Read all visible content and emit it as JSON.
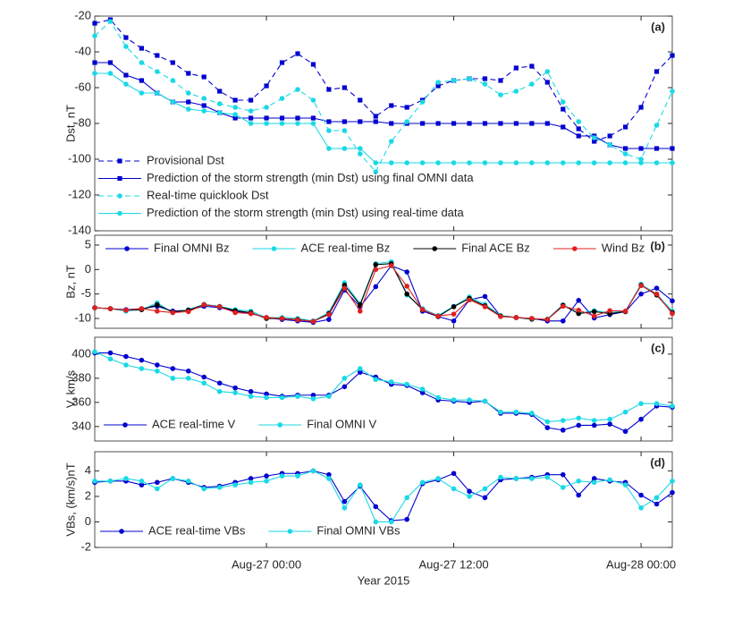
{
  "chart_data": [
    {
      "type": "line",
      "ylabel": "Dst, nT",
      "annotation": "(a)",
      "x": [
        -11,
        -10,
        -9,
        -8,
        -7,
        -6,
        -5,
        -4,
        -3,
        -2,
        -1,
        0,
        1,
        2,
        3,
        4,
        5,
        6,
        7,
        8,
        9,
        10,
        11,
        12,
        13,
        14,
        15,
        16,
        17,
        18,
        19,
        20,
        21,
        22,
        23,
        24,
        25,
        26
      ],
      "xlim": [
        -11,
        26
      ],
      "xticks": [
        0,
        12,
        24
      ],
      "ylim": [
        -140,
        -20
      ],
      "yticks": [
        -140,
        -120,
        -100,
        -80,
        -60,
        -40,
        -20
      ],
      "legend": "lower left",
      "legend_orientation": "vertical",
      "series": [
        {
          "name": "Provisional Dst",
          "color": "#0000d0",
          "line_style": "dashed",
          "marker": "square",
          "values": [
            -24,
            -22,
            -32,
            -38,
            -42,
            -46,
            -52,
            -54,
            -62,
            -67,
            -67,
            -59,
            -46,
            -41,
            -47,
            -61,
            -60,
            -67,
            -76,
            -70,
            -71,
            -67,
            -59,
            -56,
            -55,
            -55,
            -56,
            -49,
            -48,
            -57,
            -72,
            -83,
            -90,
            -87,
            -82,
            -71,
            -51,
            -42
          ]
        },
        {
          "name": "Prediction of the storm strength (min Dst) using final OMNI data",
          "color": "#0000d0",
          "line_style": "solid",
          "marker": "square",
          "values": [
            -46,
            -46,
            -53,
            -56,
            -63,
            -68,
            -68,
            -70,
            -74,
            -77,
            -77,
            -77,
            -77,
            -77,
            -77,
            -79,
            -79,
            -79,
            -79,
            -80,
            -80,
            -80,
            -80,
            -80,
            -80,
            -80,
            -80,
            -80,
            -80,
            -80,
            -82,
            -87,
            -87,
            -92,
            -94,
            -94,
            -94,
            -94
          ]
        },
        {
          "name": "Real-time quicklook Dst",
          "color": "#19d9e6",
          "line_style": "dashed",
          "marker": "circle",
          "values": [
            -31,
            -23,
            -37,
            -46,
            -51,
            -56,
            -63,
            -66,
            -69,
            -71,
            -73,
            -71,
            -66,
            -61,
            -67,
            -84,
            -84,
            -97,
            -107,
            -90,
            -79,
            -68,
            -57,
            -56,
            -55,
            -58,
            -64,
            -62,
            -58,
            -51,
            -68,
            -79,
            -88,
            -92,
            -97,
            -100,
            -81,
            -62
          ]
        },
        {
          "name": "Prediction of the storm strength (min Dst) using real-time data",
          "color": "#19d9e6",
          "line_style": "solid",
          "marker": "circle",
          "values": [
            -52,
            -52,
            -58,
            -63,
            -63,
            -68,
            -72,
            -73,
            -74,
            -75,
            -80,
            -80,
            -80,
            -80,
            -80,
            -94,
            -94,
            -94,
            -102,
            -102,
            -102,
            -102,
            -102,
            -102,
            -102,
            -102,
            -102,
            -102,
            -102,
            -102,
            -102,
            -102,
            -102,
            -102,
            -102,
            -102,
            -102,
            -102
          ]
        }
      ]
    },
    {
      "type": "line",
      "ylabel": "Bz, nT",
      "annotation": "(b)",
      "x": [
        -11,
        -10,
        -9,
        -8,
        -7,
        -6,
        -5,
        -4,
        -3,
        -2,
        -1,
        0,
        1,
        2,
        3,
        4,
        5,
        6,
        7,
        8,
        9,
        10,
        11,
        12,
        13,
        14,
        15,
        16,
        17,
        18,
        19,
        20,
        21,
        22,
        23,
        24,
        25,
        26
      ],
      "xlim": [
        -11,
        26
      ],
      "xticks": [
        0,
        12,
        24
      ],
      "ylim": [
        -12,
        7
      ],
      "yticks": [
        -10,
        -5,
        0,
        5
      ],
      "legend": "upper center",
      "legend_orientation": "horizontal",
      "series": [
        {
          "name": "Final OMNI Bz",
          "color": "#0000d0",
          "line_style": "solid",
          "marker": "circle",
          "values": [
            -7.8,
            -8,
            -8.2,
            -8,
            -7.5,
            -8.5,
            -8.3,
            -7.5,
            -7.8,
            -8.5,
            -9,
            -9.8,
            -10.2,
            -10.5,
            -10.8,
            -10.2,
            -4.2,
            -7.6,
            -3.5,
            0.8,
            -0.5,
            -8.5,
            -9.6,
            -10.5,
            -6.2,
            -5.5,
            -9.5,
            -9.8,
            -10,
            -10.5,
            -10.5,
            -6.3,
            -9.9,
            -9.2,
            -8.6,
            -5,
            -3.8,
            -6.4
          ]
        },
        {
          "name": "ACE real-time Bz",
          "color": "#19d9e6",
          "line_style": "solid",
          "marker": "circle",
          "values": [
            -7.8,
            -8,
            -8.5,
            -8.2,
            -6.8,
            -8.8,
            -8.2,
            -7.1,
            -7.5,
            -8.2,
            -8.5,
            -9.8,
            -9.8,
            -10,
            -10.5,
            -8.8,
            -2.7,
            -7,
            1.2,
            1.6,
            -5.2,
            -8,
            -9.4,
            -7.5,
            -5.6,
            -7.1,
            -9.4,
            -9.8,
            -10.2,
            -10.1,
            -7.2,
            -8.9,
            -8.4,
            -8.8,
            -8.5,
            -3,
            -5,
            -8.5
          ]
        },
        {
          "name": "Final ACE Bz",
          "color": "#000000",
          "line_style": "solid",
          "marker": "circle",
          "values": [
            -7.8,
            -8,
            -8.3,
            -8.2,
            -7.2,
            -8.7,
            -8.3,
            -7.2,
            -7.6,
            -8.4,
            -8.8,
            -10,
            -10,
            -10.2,
            -10.6,
            -9,
            -3.2,
            -7.2,
            1,
            1.2,
            -5,
            -8.2,
            -9.6,
            -7.6,
            -5.9,
            -7.4,
            -9.5,
            -9.8,
            -10.1,
            -10.2,
            -7.3,
            -9,
            -8.6,
            -9,
            -8.6,
            -3.2,
            -5.2,
            -8.8
          ]
        },
        {
          "name": "Wind Bz",
          "color": "#e02020",
          "line_style": "solid",
          "marker": "circle",
          "values": [
            -7.8,
            -8,
            -8.3,
            -8,
            -8.5,
            -8.8,
            -8.6,
            -7.2,
            -7.6,
            -8.8,
            -9,
            -9.8,
            -10,
            -10.3,
            -10.6,
            -9.2,
            -3.8,
            -8.5,
            0,
            0.8,
            -3.4,
            -8.2,
            -9.5,
            -9.1,
            -6.2,
            -7.6,
            -9.6,
            -9.8,
            -10,
            -10.2,
            -7.5,
            -8.3,
            -9.5,
            -8.4,
            -8.5,
            -3.3,
            -5,
            -9
          ]
        }
      ]
    },
    {
      "type": "line",
      "ylabel": "V, km/s",
      "annotation": "(c)",
      "x": [
        -11,
        -10,
        -9,
        -8,
        -7,
        -6,
        -5,
        -4,
        -3,
        -2,
        -1,
        0,
        1,
        2,
        3,
        4,
        5,
        6,
        7,
        8,
        9,
        10,
        11,
        12,
        13,
        14,
        15,
        16,
        17,
        18,
        19,
        20,
        21,
        22,
        23,
        24,
        25,
        26
      ],
      "xlim": [
        -11,
        26
      ],
      "xticks": [
        0,
        12,
        24
      ],
      "ylim": [
        328,
        414
      ],
      "yticks": [
        340,
        360,
        380,
        400
      ],
      "legend": "lower center",
      "legend_orientation": "horizontal",
      "series": [
        {
          "name": "ACE real-time V",
          "color": "#0000d0",
          "line_style": "solid",
          "marker": "circle",
          "values": [
            401,
            401,
            398,
            395,
            391,
            388,
            386,
            381,
            376,
            372,
            369,
            367,
            365,
            366,
            366,
            366,
            373,
            385,
            381,
            375,
            374,
            368,
            362,
            361,
            360,
            361,
            351,
            351,
            350,
            339,
            337,
            341,
            341,
            342,
            336,
            346,
            357,
            356
          ]
        },
        {
          "name": "Final OMNI V",
          "color": "#19d9e6",
          "line_style": "solid",
          "marker": "circle",
          "values": [
            402,
            396,
            391,
            388,
            386,
            380,
            380,
            376,
            369,
            368,
            365,
            364,
            364,
            365,
            363,
            365,
            380,
            388,
            379,
            377,
            375,
            371,
            364,
            362,
            362,
            361,
            352,
            352,
            351,
            344,
            345,
            347,
            345,
            346,
            352,
            359,
            359,
            357
          ]
        }
      ]
    },
    {
      "type": "line",
      "ylabel": "VBs, (km/s)nT",
      "annotation": "(d)",
      "xlabel": "Year 2015",
      "x": [
        -11,
        -10,
        -9,
        -8,
        -7,
        -6,
        -5,
        -4,
        -3,
        -2,
        -1,
        0,
        1,
        2,
        3,
        4,
        5,
        6,
        7,
        8,
        9,
        10,
        11,
        12,
        13,
        14,
        15,
        16,
        17,
        18,
        19,
        20,
        21,
        22,
        23,
        24,
        25,
        26
      ],
      "xlim": [
        -11,
        26
      ],
      "xticks": [
        {
          "value": 0,
          "label": "Aug-27 00:00"
        },
        {
          "value": 12,
          "label": "Aug-27 12:00"
        },
        {
          "value": 24,
          "label": "Aug-28 00:00"
        }
      ],
      "ylim": [
        -2,
        5.5
      ],
      "yticks": [
        -2,
        0,
        2,
        4
      ],
      "legend": "lower left",
      "legend_orientation": "horizontal",
      "series": [
        {
          "name": "ACE real-time VBs",
          "color": "#0000d0",
          "line_style": "solid",
          "marker": "circle",
          "values": [
            3.1,
            3.2,
            3.2,
            2.9,
            3.1,
            3.4,
            3.1,
            2.7,
            2.8,
            3.1,
            3.4,
            3.6,
            3.8,
            3.8,
            4.0,
            3.7,
            1.6,
            2.8,
            1.2,
            0.1,
            0.2,
            3.0,
            3.3,
            3.8,
            2.4,
            1.9,
            3.3,
            3.4,
            3.5,
            3.7,
            3.7,
            2.1,
            3.4,
            3.2,
            3.1,
            2.1,
            1.4,
            2.3
          ]
        },
        {
          "name": "Final OMNI VBs",
          "color": "#19d9e6",
          "line_style": "solid",
          "marker": "circle",
          "values": [
            3.2,
            3.2,
            3.4,
            3.2,
            2.6,
            3.4,
            3.2,
            2.6,
            2.7,
            2.9,
            3.1,
            3.2,
            3.6,
            3.6,
            4.0,
            3.4,
            1.1,
            2.9,
            0,
            0,
            1.9,
            3.1,
            3.4,
            2.6,
            2.0,
            2.6,
            3.5,
            3.4,
            3.4,
            3.5,
            2.7,
            3.2,
            3.1,
            3.3,
            2.9,
            1.1,
            1.9,
            3.2
          ]
        }
      ]
    }
  ]
}
